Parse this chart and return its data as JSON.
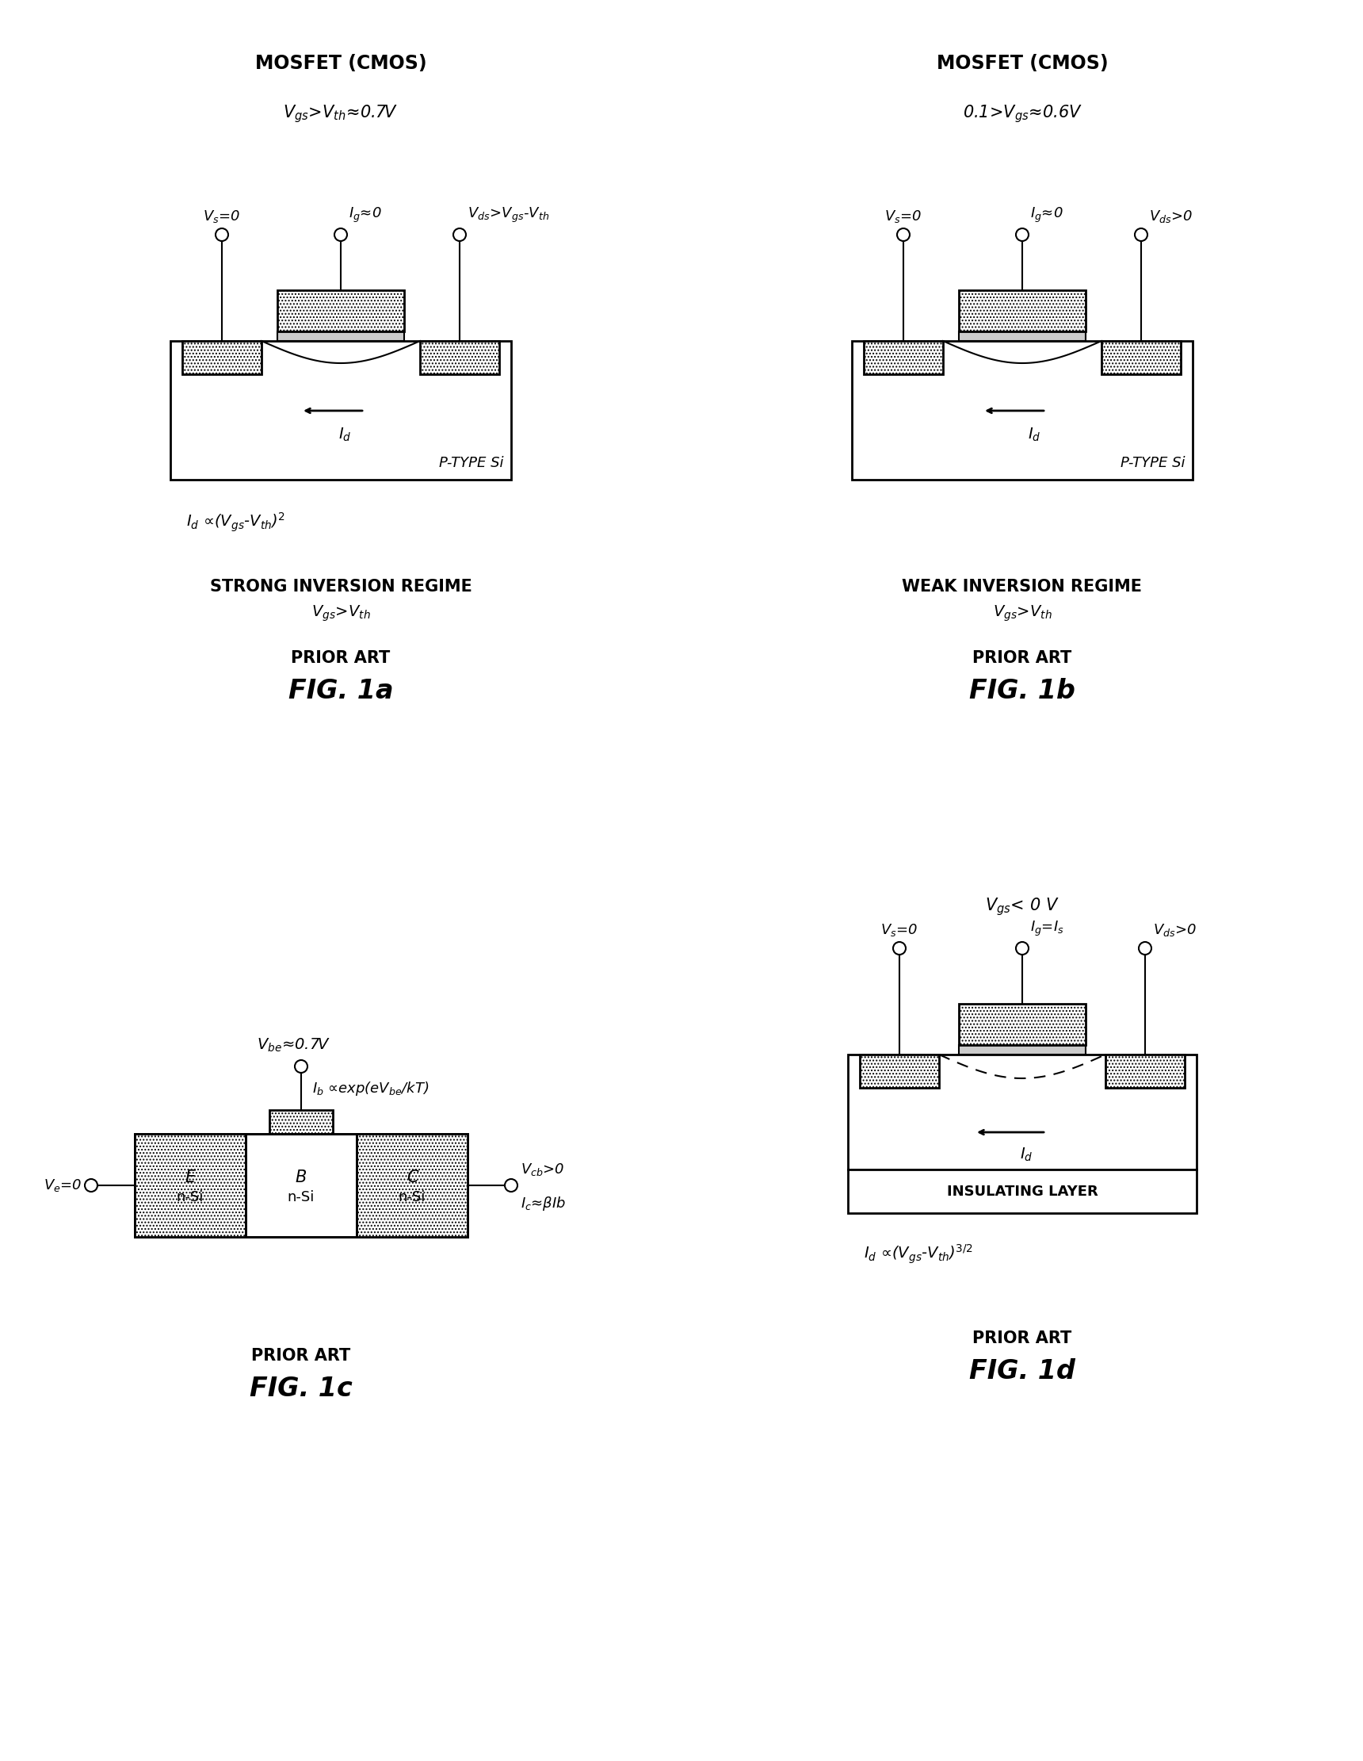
{
  "bg_color": "#ffffff",
  "fig_width": 17.2,
  "fig_height": 22.21,
  "panels": {
    "fig1a": {
      "title": "MOSFET (CMOS)",
      "vgs_label": "V$_{gs}$>V$_{th}$≈0.7V",
      "vs_label": "V$_{s}$=0",
      "ig_label": "I$_{g}$≈0",
      "vds_label": "V$_{ds}$>V$_{gs}$-V$_{th}$",
      "id_label": "I$_{d}$",
      "substrate_label": "P-TYPE Si",
      "eq_label": "I$_{d}$ ∝(V$_{gs}$-V$_{th}$)$^{2}$",
      "regime_label": "STRONG INVERSION REGIME",
      "regime_sub": "V$_{gs}$>V$_{th}$",
      "prior_art": "PRIOR ART",
      "fig_label": "FIG. 1a"
    },
    "fig1b": {
      "title": "MOSFET (CMOS)",
      "vgs_label": "0.1>V$_{gs}$≈0.6V",
      "vs_label": "V$_{s}$=0",
      "ig_label": "I$_{g}$≈0",
      "vds_label": "V$_{ds}$>0",
      "id_label": "I$_{d}$",
      "substrate_label": "P-TYPE Si",
      "regime_label": "WEAK INVERSION REGIME",
      "regime_sub": "V$_{gs}$>V$_{th}$",
      "prior_art": "PRIOR ART",
      "fig_label": "FIG. 1b"
    },
    "fig1c": {
      "vbe_label": "V$_{be}$≈0.7V",
      "ib_label": "I$_{b}$ ∝exp(eV$_{be}$/kT)",
      "ve_label": "V$_{e}$=0",
      "vcb_label": "V$_{cb}$>0",
      "ic_label": "I$_{c}$≈βIb",
      "prior_art": "PRIOR ART",
      "fig_label": "FIG. 1c"
    },
    "fig1d": {
      "vgs_label": "V$_{gs}$< 0 V",
      "vs_label": "V$_{s}$=0",
      "ig_label": "I$_{g}$=I$_{s}$",
      "vds_label": "V$_{ds}$>0",
      "id_label": "I$_{d}$",
      "insulating_label": "INSULATING LAYER",
      "eq_label": "I$_{d}$ ∝(V$_{gs}$-V$_{th}$)$^{3/2}$",
      "prior_art": "PRIOR ART",
      "fig_label": "FIG. 1d"
    }
  }
}
